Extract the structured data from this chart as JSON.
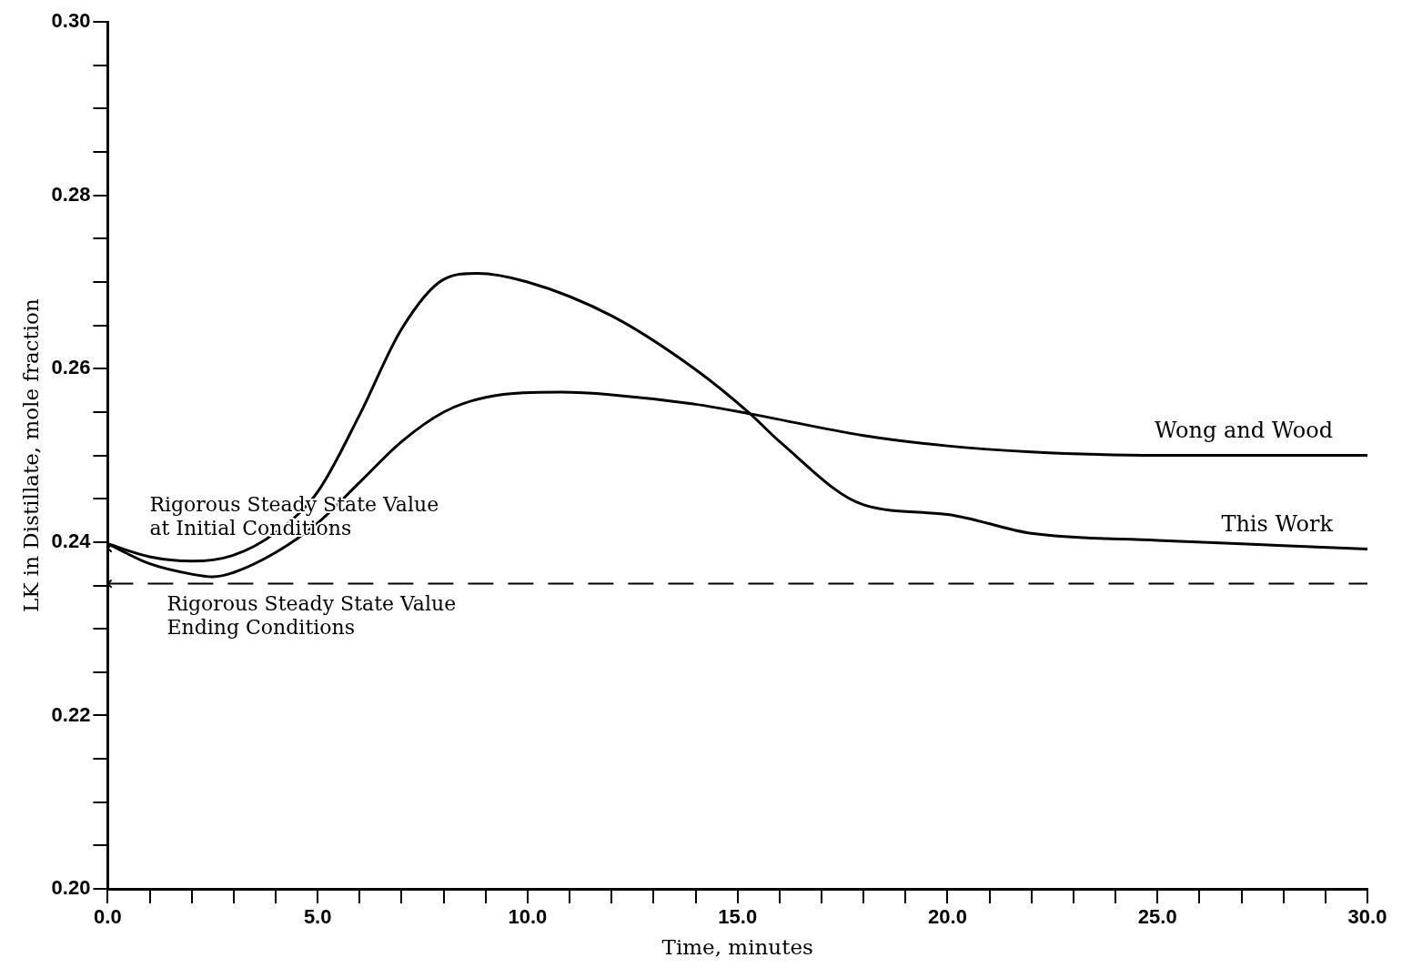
{
  "chart_data": {
    "type": "line",
    "xlabel": "Time, minutes",
    "ylabel": "LK in Distillate, mole fraction",
    "xlim": [
      0,
      30
    ],
    "ylim": [
      0.2,
      0.3
    ],
    "xticks": [
      {
        "value": 0,
        "label": "0.0"
      },
      {
        "value": 1,
        "label": null
      },
      {
        "value": 2,
        "label": null
      },
      {
        "value": 3,
        "label": null
      },
      {
        "value": 4,
        "label": null
      },
      {
        "value": 5,
        "label": "5.0"
      },
      {
        "value": 6,
        "label": null
      },
      {
        "value": 7,
        "label": null
      },
      {
        "value": 8,
        "label": null
      },
      {
        "value": 9,
        "label": null
      },
      {
        "value": 10,
        "label": "10.0"
      },
      {
        "value": 11,
        "label": null
      },
      {
        "value": 12,
        "label": null
      },
      {
        "value": 13,
        "label": null
      },
      {
        "value": 14,
        "label": null
      },
      {
        "value": 15,
        "label": "15.0"
      },
      {
        "value": 16,
        "label": null
      },
      {
        "value": 17,
        "label": null
      },
      {
        "value": 18,
        "label": null
      },
      {
        "value": 19,
        "label": null
      },
      {
        "value": 20,
        "label": "20.0"
      },
      {
        "value": 21,
        "label": null
      },
      {
        "value": 22,
        "label": null
      },
      {
        "value": 23,
        "label": null
      },
      {
        "value": 24,
        "label": null
      },
      {
        "value": 25,
        "label": "25.0"
      },
      {
        "value": 26,
        "label": null
      },
      {
        "value": 27,
        "label": null
      },
      {
        "value": 28,
        "label": null
      },
      {
        "value": 29,
        "label": null
      },
      {
        "value": 30,
        "label": "30.0"
      }
    ],
    "yticks": [
      {
        "value": 0.2,
        "label": "0.20"
      },
      {
        "value": 0.205,
        "label": null
      },
      {
        "value": 0.21,
        "label": null
      },
      {
        "value": 0.215,
        "label": null
      },
      {
        "value": 0.22,
        "label": "0.22"
      },
      {
        "value": 0.225,
        "label": null
      },
      {
        "value": 0.23,
        "label": null
      },
      {
        "value": 0.235,
        "label": null
      },
      {
        "value": 0.24,
        "label": "0.24"
      },
      {
        "value": 0.245,
        "label": null
      },
      {
        "value": 0.25,
        "label": null
      },
      {
        "value": 0.255,
        "label": null
      },
      {
        "value": 0.26,
        "label": "0.26"
      },
      {
        "value": 0.265,
        "label": null
      },
      {
        "value": 0.27,
        "label": null
      },
      {
        "value": 0.275,
        "label": null
      },
      {
        "value": 0.28,
        "label": "0.28"
      },
      {
        "value": 0.285,
        "label": null
      },
      {
        "value": 0.29,
        "label": null
      },
      {
        "value": 0.295,
        "label": null
      },
      {
        "value": 0.3,
        "label": "0.30"
      }
    ],
    "grid": false,
    "legend": false,
    "marker": "none",
    "line_style": "solid",
    "series": [
      {
        "name": "Wong and Wood",
        "color": "#000000",
        "x": [
          0,
          1,
          2,
          2.5,
          3,
          4,
          5,
          6,
          7,
          8,
          9,
          10.8,
          12,
          14,
          15.3,
          18,
          20,
          22,
          25,
          30
        ],
        "values": [
          0.2398,
          0.2375,
          0.2363,
          0.236,
          0.2365,
          0.2388,
          0.2422,
          0.2469,
          0.2516,
          0.255,
          0.2567,
          0.2573,
          0.257,
          0.2559,
          0.2548,
          0.2523,
          0.2511,
          0.2504,
          0.25,
          0.25
        ]
      },
      {
        "name": "This Work",
        "color": "#000000",
        "x": [
          0,
          1,
          2,
          3,
          4,
          5,
          6,
          7,
          8,
          8.8,
          10,
          12,
          14,
          15.3,
          16,
          18,
          20,
          22,
          25,
          28,
          30
        ],
        "values": [
          0.2398,
          0.2383,
          0.2378,
          0.2385,
          0.2411,
          0.2458,
          0.2547,
          0.2646,
          0.2703,
          0.271,
          0.27,
          0.2661,
          0.2599,
          0.2548,
          0.2516,
          0.2443,
          0.2432,
          0.241,
          0.2402,
          0.2396,
          0.2392
        ]
      },
      {
        "type": "scatter",
        "marker": "cross",
        "color": "#000000",
        "x": [
          0,
          0
        ],
        "values": [
          0.2393,
          0.2352
        ]
      }
    ],
    "ref_lines": [
      {
        "axis": "y",
        "value": 0.2352,
        "label": "Rigorous Steady State Value\nEnding Conditions",
        "color": "#000000",
        "line_style": "dashed"
      }
    ],
    "annotations": [
      {
        "text": "Rigorous Steady State Value\nat Initial Conditions",
        "x": 0,
        "y": 0.2393
      }
    ]
  }
}
